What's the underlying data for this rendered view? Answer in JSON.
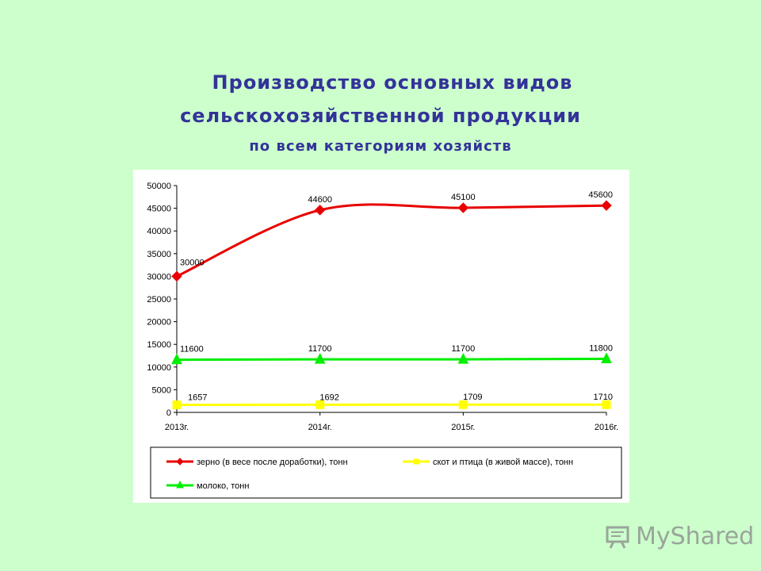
{
  "slide": {
    "title_line1": "Производство основных видов",
    "title_line2": "сельскохозяйственной  продукции",
    "subtitle": "по всем категориям хозяйств"
  },
  "watermark": {
    "text": "MyShared",
    "icon": "presentation-screen-icon"
  },
  "colors": {
    "background": "#ccffcc",
    "title": "#333399",
    "grain": "#e80000",
    "livestock": "#ffff00",
    "milk": "#00ee00"
  },
  "chart_data": {
    "type": "line",
    "categories": [
      "2013г.",
      "2014г.",
      "2015г.",
      "2016г."
    ],
    "ylim": [
      0,
      50000
    ],
    "yticks": [
      0,
      5000,
      10000,
      15000,
      20000,
      25000,
      30000,
      35000,
      40000,
      45000,
      50000
    ],
    "grid": false,
    "legend_position": "bottom",
    "series": [
      {
        "name": "зерно (в весе после доработки), тонн",
        "values": [
          30000,
          44600,
          45100,
          45600
        ],
        "labels": [
          "30000",
          "44600",
          "45100",
          "45600"
        ],
        "color": "#e80000",
        "marker": "diamond"
      },
      {
        "name": "скот и птица (в живой массе), тонн",
        "values": [
          1657,
          1692,
          1709,
          1710
        ],
        "labels": [
          "1657",
          "1692",
          "1709",
          "1710"
        ],
        "color": "#ffff00",
        "marker": "square"
      },
      {
        "name": "молоко, тонн",
        "values": [
          11600,
          11700,
          11700,
          11800
        ],
        "labels": [
          "11600",
          "11700",
          "11700",
          "11800"
        ],
        "color": "#00ee00",
        "marker": "triangle"
      }
    ]
  }
}
